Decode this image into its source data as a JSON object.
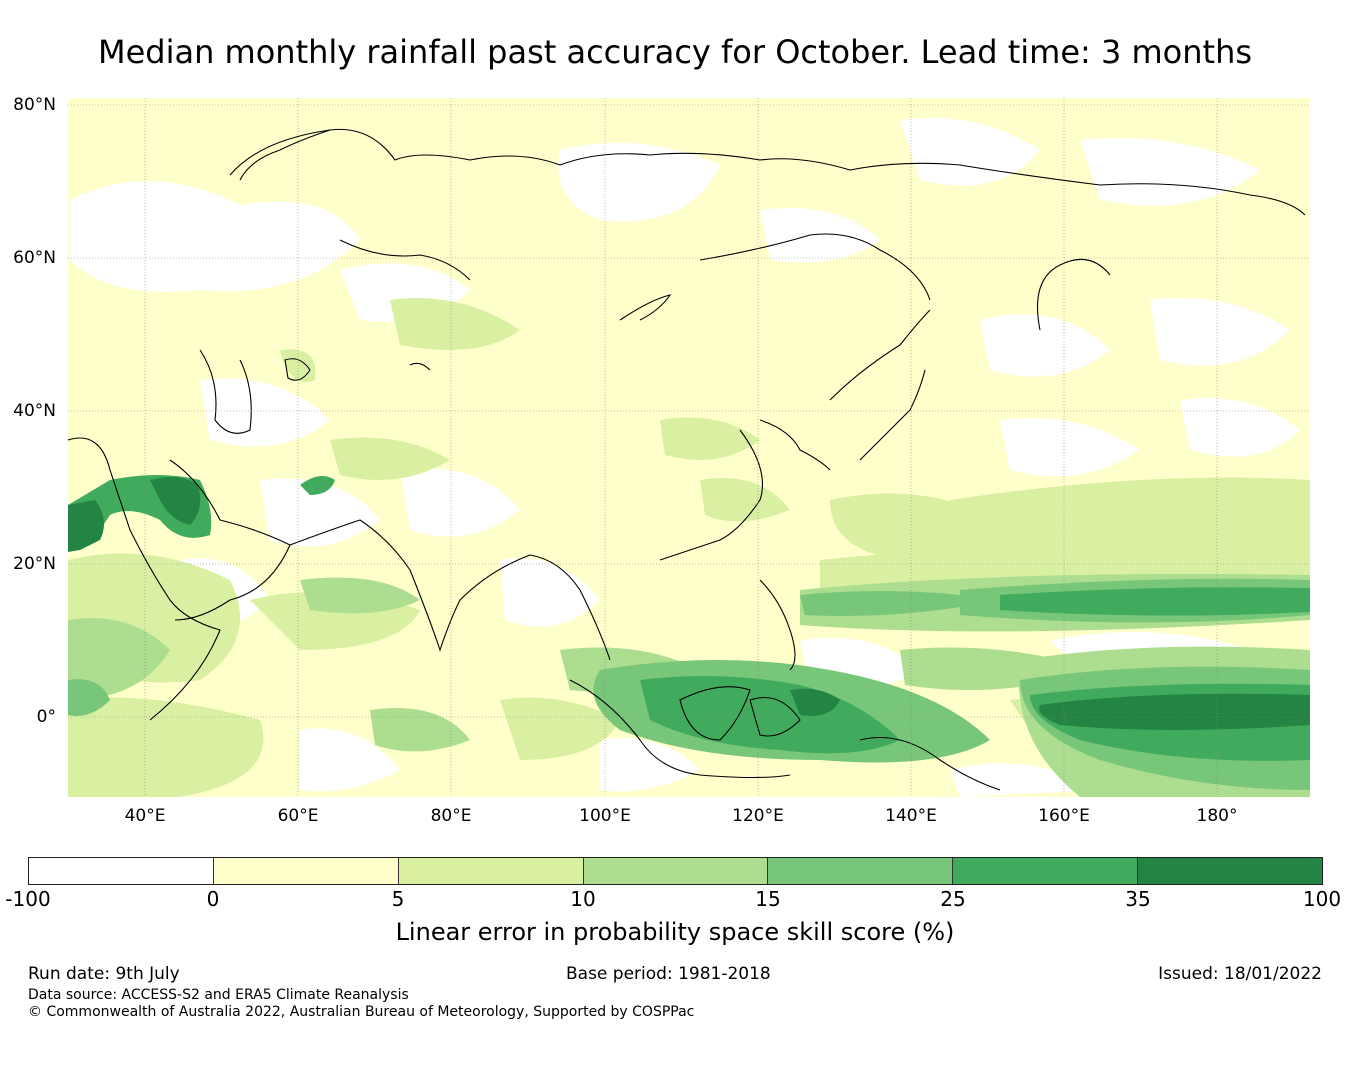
{
  "title": "Median monthly rainfall past accuracy for October. Lead time: 3 months",
  "map": {
    "lat_labels": [
      "80°N",
      "60°N",
      "40°N",
      "20°N",
      "0°"
    ],
    "lon_labels": [
      "40°E",
      "60°E",
      "80°E",
      "100°E",
      "120°E",
      "140°E",
      "160°E",
      "180°"
    ]
  },
  "colorbar": {
    "ticks": [
      "-100",
      "0",
      "5",
      "10",
      "15",
      "25",
      "35",
      "100"
    ],
    "colors": [
      "#ffffff",
      "#ffffcc",
      "#d9f0a3",
      "#addd8e",
      "#78c679",
      "#41ab5d",
      "#238443"
    ],
    "label": "Linear error in probability space skill score (%)"
  },
  "footer": {
    "run_date": "Run date: 9th July",
    "base_period": "Base period: 1981-2018",
    "issued": "Issued: 18/01/2022",
    "data_source": "Data source: ACCESS-S2 and ERA5 Climate Reanalysis",
    "copyright": "© Commonwealth of Australia 2022, Australian Bureau of Meteorology, Supported by COSPPac"
  }
}
